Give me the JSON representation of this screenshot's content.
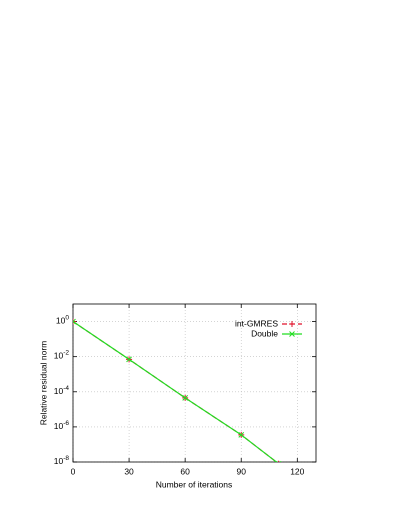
{
  "chart_data": {
    "type": "line",
    "x_label": "Number of iterations",
    "y_label": "Relative residual norm",
    "x": [
      0,
      30,
      60,
      90,
      110
    ],
    "series": [
      {
        "name": "int-GMRES",
        "color": "#e0102a",
        "dashed": true,
        "marker": "plus",
        "values": [
          1,
          0.007,
          4.5e-05,
          3.5e-07,
          8e-09
        ]
      },
      {
        "name": "Double",
        "color": "#22dd22",
        "dashed": false,
        "marker": "cross",
        "values": [
          1,
          0.007,
          4.5e-05,
          3.5e-07,
          8e-09
        ]
      }
    ],
    "xlim": [
      0,
      130
    ],
    "xticks": [
      0,
      30,
      60,
      90,
      120
    ],
    "ylim": [
      1e-08,
      10
    ],
    "ylog": true,
    "yticks": [
      {
        "value": 1,
        "label": "10^0"
      },
      {
        "value": 0.01,
        "label": "10^-2"
      },
      {
        "value": 0.0001,
        "label": "10^-4"
      },
      {
        "value": 1e-06,
        "label": "10^-6"
      },
      {
        "value": 1e-08,
        "label": "10^-8"
      }
    ],
    "grid": true,
    "legend": "top-right"
  }
}
